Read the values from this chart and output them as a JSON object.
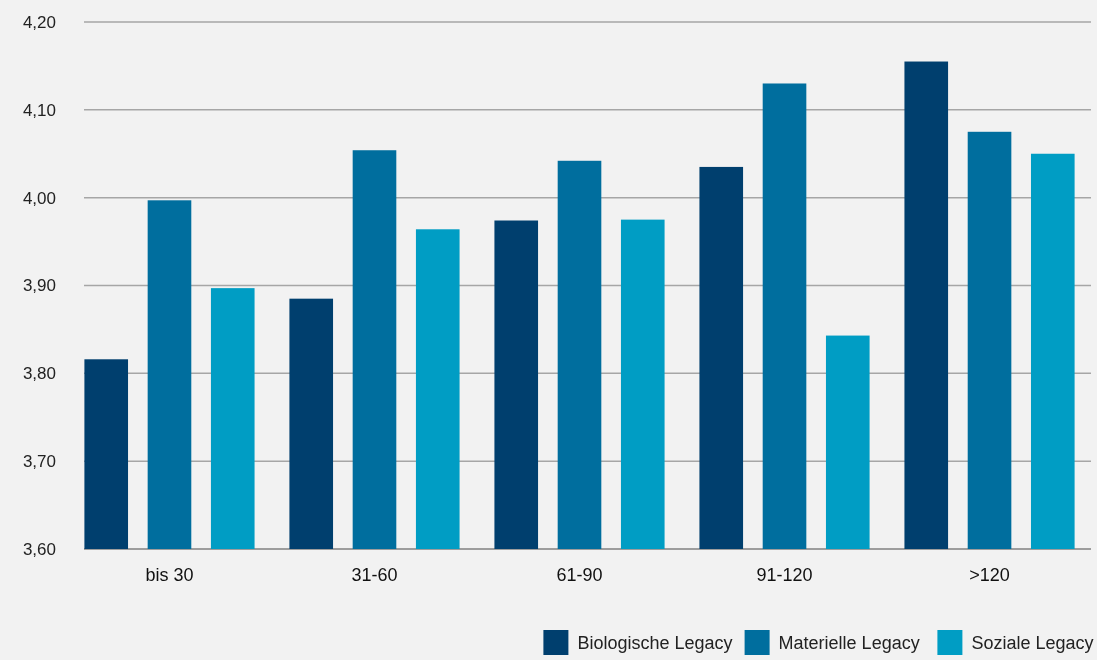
{
  "chart_data": {
    "type": "bar",
    "categories": [
      "bis 30",
      "31-60",
      "61-90",
      "91-120",
      ">120"
    ],
    "series": [
      {
        "name": "Biologische Legacy",
        "color": "#003f6e",
        "values": [
          3.816,
          3.885,
          3.974,
          4.035,
          4.155
        ]
      },
      {
        "name": "Materielle Legacy",
        "color": "#006e9e",
        "values": [
          3.997,
          4.054,
          4.042,
          4.13,
          4.075
        ]
      },
      {
        "name": "Soziale Legacy",
        "color": "#009dc4",
        "values": [
          3.897,
          3.964,
          3.975,
          3.843,
          4.05
        ]
      }
    ],
    "ylim": [
      3.6,
      4.2
    ],
    "yticks": [
      {
        "value": 3.6,
        "label": "3,60"
      },
      {
        "value": 3.7,
        "label": "3,70"
      },
      {
        "value": 3.8,
        "label": "3,80"
      },
      {
        "value": 3.9,
        "label": "3,90"
      },
      {
        "value": 4.0,
        "label": "4,00"
      },
      {
        "value": 4.1,
        "label": "4,10"
      },
      {
        "value": 4.2,
        "label": "4,20"
      }
    ],
    "grid": "y",
    "legend": "bottom right"
  }
}
